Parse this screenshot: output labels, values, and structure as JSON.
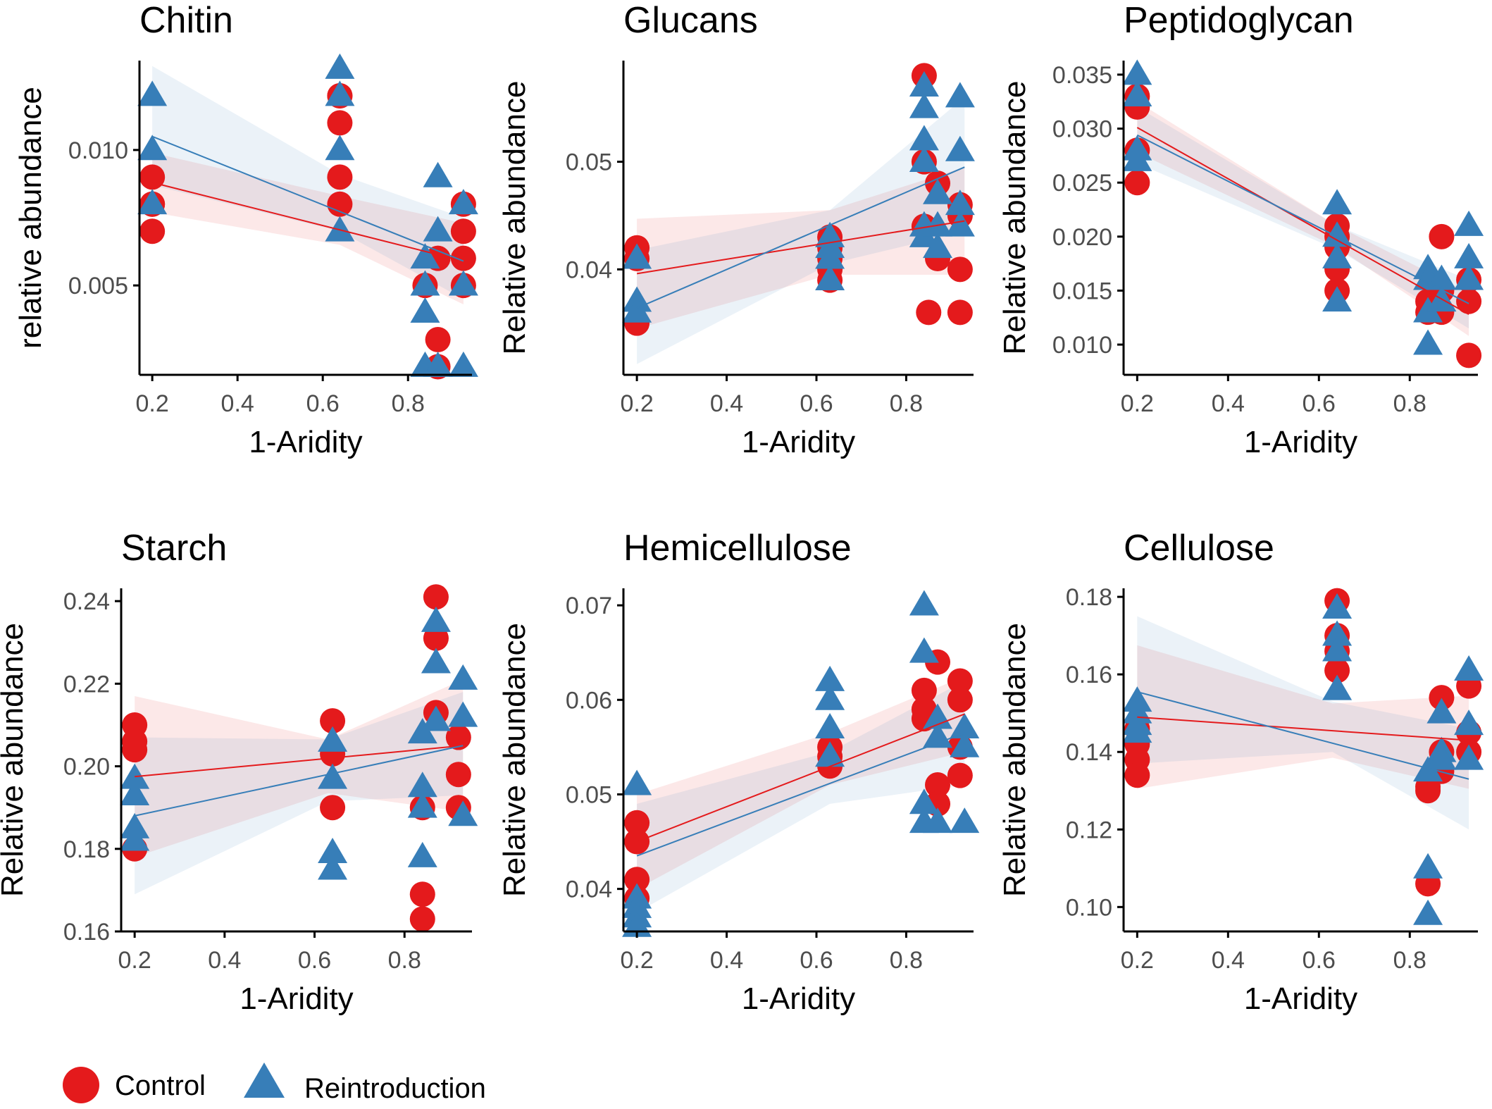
{
  "colors": {
    "control": "#e41a1c",
    "reintroduction": "#377eb8",
    "axis": "#000000",
    "tick_text": "#4d4d4d"
  },
  "legend": {
    "position": "bottom-left",
    "items": [
      {
        "key": "control",
        "label": "Control",
        "shape": "circle"
      },
      {
        "key": "reintroduction",
        "label": "Reintroduction",
        "shape": "triangle"
      }
    ]
  },
  "chart_data": [
    {
      "type": "scatter",
      "title": "Chitin",
      "xlabel": "1-Aridity",
      "ylabel": "relative abundance",
      "xlim": [
        0.17,
        0.95
      ],
      "ylim": [
        0.0017,
        0.0133
      ],
      "xticks": [
        0.2,
        0.4,
        0.6,
        0.8
      ],
      "xtick_labels": [
        "0.2",
        "0.4",
        "0.6",
        "0.8"
      ],
      "yticks": [
        0.005,
        0.01
      ],
      "ytick_labels": [
        "0.005",
        "0.010"
      ],
      "series": [
        {
          "name": "Control",
          "key": "control",
          "shape": "circle",
          "x": [
            0.2,
            0.2,
            0.2,
            0.2,
            0.64,
            0.64,
            0.64,
            0.64,
            0.64,
            0.84,
            0.87,
            0.87,
            0.87,
            0.93,
            0.93,
            0.93,
            0.93
          ],
          "y": [
            0.009,
            0.008,
            0.008,
            0.007,
            0.012,
            0.011,
            0.009,
            0.008,
            0.012,
            0.005,
            0.006,
            0.003,
            0.002,
            0.008,
            0.007,
            0.006,
            0.005
          ],
          "fit": [
            [
              0.2,
              0.0088
            ],
            [
              0.93,
              0.0059
            ]
          ],
          "band": [
            [
              0.2,
              0.0077,
              0.0099
            ],
            [
              0.64,
              0.0065,
              0.0083
            ],
            [
              0.93,
              0.0043,
              0.0073
            ]
          ]
        },
        {
          "name": "Reintroduction",
          "key": "reintroduction",
          "shape": "triangle",
          "x": [
            0.2,
            0.2,
            0.2,
            0.64,
            0.64,
            0.64,
            0.64,
            0.84,
            0.84,
            0.84,
            0.84,
            0.87,
            0.87,
            0.87,
            0.93,
            0.93,
            0.93
          ],
          "y": [
            0.012,
            0.01,
            0.008,
            0.013,
            0.012,
            0.01,
            0.007,
            0.006,
            0.005,
            0.004,
            0.002,
            0.009,
            0.007,
            0.002,
            0.008,
            0.005,
            0.002
          ],
          "fit": [
            [
              0.2,
              0.0105
            ],
            [
              0.93,
              0.0059
            ]
          ],
          "band": [
            [
              0.2,
              0.0087,
              0.0131
            ],
            [
              0.64,
              0.007,
              0.0091
            ],
            [
              0.93,
              0.0045,
              0.0075
            ]
          ]
        }
      ]
    },
    {
      "type": "scatter",
      "title": "Glucans",
      "xlabel": "1-Aridity",
      "ylabel": "Relative abundance",
      "xlim": [
        0.17,
        0.95
      ],
      "ylim": [
        0.0302,
        0.0594
      ],
      "xticks": [
        0.2,
        0.4,
        0.6,
        0.8
      ],
      "xtick_labels": [
        "0.2",
        "0.4",
        "0.6",
        "0.8"
      ],
      "yticks": [
        0.04,
        0.05
      ],
      "ytick_labels": [
        "0.04",
        "0.05"
      ],
      "series": [
        {
          "name": "Control",
          "key": "control",
          "shape": "circle",
          "x": [
            0.2,
            0.2,
            0.2,
            0.63,
            0.63,
            0.63,
            0.63,
            0.63,
            0.84,
            0.84,
            0.84,
            0.85,
            0.87,
            0.87,
            0.92,
            0.92,
            0.92,
            0.92
          ],
          "y": [
            0.042,
            0.041,
            0.035,
            0.043,
            0.042,
            0.041,
            0.04,
            0.039,
            0.058,
            0.05,
            0.044,
            0.036,
            0.048,
            0.041,
            0.046,
            0.045,
            0.04,
            0.036
          ],
          "fit": [
            [
              0.2,
              0.0396
            ],
            [
              0.93,
              0.0445
            ]
          ],
          "band": [
            [
              0.2,
              0.0345,
              0.0447
            ],
            [
              0.63,
              0.0395,
              0.0455
            ],
            [
              0.93,
              0.0395,
              0.0495
            ]
          ]
        },
        {
          "name": "Reintroduction",
          "key": "reintroduction",
          "shape": "triangle",
          "x": [
            0.2,
            0.2,
            0.2,
            0.63,
            0.63,
            0.63,
            0.63,
            0.84,
            0.84,
            0.84,
            0.84,
            0.84,
            0.84,
            0.87,
            0.87,
            0.87,
            0.92,
            0.92,
            0.92,
            0.92
          ],
          "y": [
            0.041,
            0.037,
            0.036,
            0.043,
            0.042,
            0.041,
            0.039,
            0.057,
            0.055,
            0.052,
            0.05,
            0.044,
            0.043,
            0.047,
            0.044,
            0.042,
            0.056,
            0.051,
            0.046,
            0.044
          ],
          "fit": [
            [
              0.2,
              0.0364
            ],
            [
              0.93,
              0.0495
            ]
          ],
          "band": [
            [
              0.2,
              0.0312,
              0.0418
            ],
            [
              0.63,
              0.0405,
              0.0455
            ],
            [
              0.93,
              0.0435,
              0.056
            ]
          ]
        }
      ]
    },
    {
      "type": "scatter",
      "title": "Peptidoglycan",
      "xlabel": "1-Aridity",
      "ylabel": "Relative abundance",
      "xlim": [
        0.17,
        0.95
      ],
      "ylim": [
        0.0072,
        0.0363
      ],
      "xticks": [
        0.2,
        0.4,
        0.6,
        0.8
      ],
      "xtick_labels": [
        "0.2",
        "0.4",
        "0.6",
        "0.8"
      ],
      "yticks": [
        0.01,
        0.015,
        0.02,
        0.025,
        0.03,
        0.035
      ],
      "ytick_labels": [
        "0.010",
        "0.015",
        "0.020",
        "0.025",
        "0.030",
        "0.035"
      ],
      "series": [
        {
          "name": "Control",
          "key": "control",
          "shape": "circle",
          "x": [
            0.2,
            0.2,
            0.2,
            0.2,
            0.64,
            0.64,
            0.64,
            0.64,
            0.64,
            0.84,
            0.84,
            0.87,
            0.87,
            0.87,
            0.93,
            0.93,
            0.93
          ],
          "y": [
            0.033,
            0.032,
            0.028,
            0.025,
            0.021,
            0.02,
            0.017,
            0.015,
            0.019,
            0.014,
            0.013,
            0.02,
            0.015,
            0.013,
            0.016,
            0.014,
            0.009
          ],
          "fit": [
            [
              0.2,
              0.0301
            ],
            [
              0.93,
              0.0128
            ]
          ],
          "band": [
            [
              0.2,
              0.0278,
              0.0325
            ],
            [
              0.64,
              0.019,
              0.021
            ],
            [
              0.93,
              0.0108,
              0.0148
            ]
          ]
        },
        {
          "name": "Reintroduction",
          "key": "reintroduction",
          "shape": "triangle",
          "x": [
            0.2,
            0.2,
            0.2,
            0.2,
            0.64,
            0.64,
            0.64,
            0.64,
            0.84,
            0.84,
            0.84,
            0.84,
            0.87,
            0.87,
            0.93,
            0.93,
            0.93
          ],
          "y": [
            0.035,
            0.033,
            0.028,
            0.027,
            0.023,
            0.02,
            0.018,
            0.014,
            0.017,
            0.016,
            0.013,
            0.01,
            0.016,
            0.014,
            0.021,
            0.018,
            0.016
          ],
          "fit": [
            [
              0.2,
              0.0294
            ],
            [
              0.93,
              0.0138
            ]
          ],
          "band": [
            [
              0.2,
              0.0268,
              0.032
            ],
            [
              0.64,
              0.0188,
              0.021
            ],
            [
              0.93,
              0.0115,
              0.016
            ]
          ]
        }
      ]
    },
    {
      "type": "scatter",
      "title": "Starch",
      "xlabel": "1-Aridity",
      "ylabel": "Relative abundance",
      "xlim": [
        0.17,
        0.95
      ],
      "ylim": [
        0.16,
        0.2431
      ],
      "xticks": [
        0.2,
        0.4,
        0.6,
        0.8
      ],
      "xtick_labels": [
        "0.2",
        "0.4",
        "0.6",
        "0.8"
      ],
      "yticks": [
        0.16,
        0.18,
        0.2,
        0.22,
        0.24
      ],
      "ytick_labels": [
        "0.16",
        "0.18",
        "0.20",
        "0.22",
        "0.24"
      ],
      "series": [
        {
          "name": "Control",
          "key": "control",
          "shape": "circle",
          "x": [
            0.2,
            0.2,
            0.2,
            0.2,
            0.64,
            0.64,
            0.64,
            0.84,
            0.84,
            0.84,
            0.87,
            0.87,
            0.87,
            0.92,
            0.92,
            0.92
          ],
          "y": [
            0.21,
            0.206,
            0.204,
            0.18,
            0.211,
            0.203,
            0.19,
            0.19,
            0.169,
            0.163,
            0.241,
            0.231,
            0.213,
            0.207,
            0.198,
            0.19
          ],
          "fit": [
            [
              0.2,
              0.1975
            ],
            [
              0.93,
              0.205
            ]
          ],
          "band": [
            [
              0.2,
              0.178,
              0.217
            ],
            [
              0.63,
              0.1935,
              0.2065
            ],
            [
              0.93,
              0.189,
              0.221
            ]
          ]
        },
        {
          "name": "Reintroduction",
          "key": "reintroduction",
          "shape": "triangle",
          "x": [
            0.2,
            0.2,
            0.2,
            0.2,
            0.64,
            0.64,
            0.64,
            0.64,
            0.84,
            0.84,
            0.84,
            0.84,
            0.87,
            0.87,
            0.87,
            0.93,
            0.93,
            0.93
          ],
          "y": [
            0.197,
            0.193,
            0.185,
            0.182,
            0.206,
            0.197,
            0.179,
            0.175,
            0.208,
            0.195,
            0.19,
            0.178,
            0.235,
            0.225,
            0.211,
            0.221,
            0.212,
            0.188
          ],
          "fit": [
            [
              0.2,
              0.188
            ],
            [
              0.93,
              0.205
            ]
          ],
          "band": [
            [
              0.2,
              0.169,
              0.207
            ],
            [
              0.63,
              0.1915,
              0.2065
            ],
            [
              0.93,
              0.193,
              0.218
            ]
          ]
        }
      ]
    },
    {
      "type": "scatter",
      "title": "Hemicellulose",
      "xlabel": "1-Aridity",
      "ylabel": "Relative abundance",
      "xlim": [
        0.17,
        0.95
      ],
      "ylim": [
        0.0355,
        0.0718
      ],
      "xticks": [
        0.2,
        0.4,
        0.6,
        0.8
      ],
      "xtick_labels": [
        "0.2",
        "0.4",
        "0.6",
        "0.8"
      ],
      "yticks": [
        0.04,
        0.05,
        0.06,
        0.07
      ],
      "ytick_labels": [
        "0.04",
        "0.05",
        "0.06",
        "0.07"
      ],
      "series": [
        {
          "name": "Control",
          "key": "control",
          "shape": "circle",
          "x": [
            0.2,
            0.2,
            0.2,
            0.2,
            0.63,
            0.63,
            0.63,
            0.84,
            0.84,
            0.84,
            0.87,
            0.87,
            0.87,
            0.92,
            0.92,
            0.92,
            0.92
          ],
          "y": [
            0.047,
            0.045,
            0.041,
            0.039,
            0.055,
            0.054,
            0.053,
            0.061,
            0.059,
            0.058,
            0.064,
            0.051,
            0.049,
            0.062,
            0.06,
            0.055,
            0.052
          ],
          "fit": [
            [
              0.2,
              0.045
            ],
            [
              0.93,
              0.0585
            ]
          ],
          "band": [
            [
              0.2,
              0.04,
              0.05
            ],
            [
              0.63,
              0.051,
              0.0565
            ],
            [
              0.93,
              0.0545,
              0.0625
            ]
          ]
        },
        {
          "name": "Reintroduction",
          "key": "reintroduction",
          "shape": "triangle",
          "x": [
            0.2,
            0.2,
            0.2,
            0.2,
            0.2,
            0.63,
            0.63,
            0.63,
            0.63,
            0.84,
            0.84,
            0.84,
            0.84,
            0.87,
            0.87,
            0.87,
            0.93,
            0.93,
            0.93
          ],
          "y": [
            0.051,
            0.039,
            0.038,
            0.037,
            0.036,
            0.062,
            0.06,
            0.057,
            0.054,
            0.07,
            0.065,
            0.049,
            0.047,
            0.058,
            0.056,
            0.047,
            0.057,
            0.055,
            0.047
          ],
          "fit": [
            [
              0.2,
              0.0435
            ],
            [
              0.93,
              0.0565
            ]
          ],
          "band": [
            [
              0.2,
              0.0375,
              0.049
            ],
            [
              0.63,
              0.049,
              0.0545
            ],
            [
              0.93,
              0.051,
              0.062
            ]
          ]
        }
      ]
    },
    {
      "type": "scatter",
      "title": "Cellulose",
      "xlabel": "1-Aridity",
      "ylabel": "Relative abundance",
      "xlim": [
        0.17,
        0.95
      ],
      "ylim": [
        0.0937,
        0.1822
      ],
      "xticks": [
        0.2,
        0.4,
        0.6,
        0.8
      ],
      "xtick_labels": [
        "0.2",
        "0.4",
        "0.6",
        "0.8"
      ],
      "yticks": [
        0.1,
        0.12,
        0.14,
        0.16,
        0.18
      ],
      "ytick_labels": [
        "0.10",
        "0.12",
        "0.14",
        "0.16",
        "0.18"
      ],
      "series": [
        {
          "name": "Control",
          "key": "control",
          "shape": "circle",
          "x": [
            0.2,
            0.2,
            0.2,
            0.2,
            0.64,
            0.64,
            0.64,
            0.64,
            0.84,
            0.84,
            0.84,
            0.87,
            0.87,
            0.87,
            0.93,
            0.93,
            0.93
          ],
          "y": [
            0.146,
            0.142,
            0.138,
            0.134,
            0.179,
            0.17,
            0.166,
            0.161,
            0.131,
            0.13,
            0.106,
            0.154,
            0.14,
            0.135,
            0.157,
            0.145,
            0.14
          ],
          "fit": [
            [
              0.2,
              0.149
            ],
            [
              0.93,
              0.143
            ]
          ],
          "band": [
            [
              0.2,
              0.1305,
              0.1675
            ],
            [
              0.63,
              0.1385,
              0.1525
            ],
            [
              0.93,
              0.1305,
              0.1545
            ]
          ]
        },
        {
          "name": "Reintroduction",
          "key": "reintroduction",
          "shape": "triangle",
          "x": [
            0.2,
            0.2,
            0.2,
            0.2,
            0.64,
            0.64,
            0.64,
            0.64,
            0.84,
            0.84,
            0.84,
            0.87,
            0.87,
            0.87,
            0.93,
            0.93,
            0.93
          ],
          "y": [
            0.153,
            0.15,
            0.147,
            0.145,
            0.177,
            0.17,
            0.166,
            0.156,
            0.135,
            0.11,
            0.098,
            0.15,
            0.14,
            0.138,
            0.161,
            0.147,
            0.138
          ],
          "fit": [
            [
              0.2,
              0.1555
            ],
            [
              0.93,
              0.133
            ]
          ],
          "band": [
            [
              0.2,
              0.137,
              0.175
            ],
            [
              0.63,
              0.14,
              0.153
            ],
            [
              0.93,
              0.12,
              0.146
            ]
          ]
        }
      ]
    }
  ]
}
